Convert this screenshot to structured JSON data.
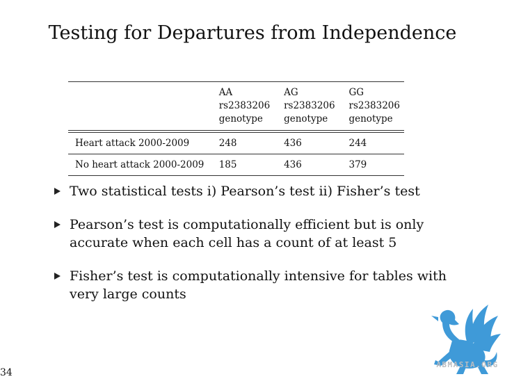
{
  "slide": {
    "title": "Testing for Departures from Independence",
    "page_number": "34"
  },
  "table": {
    "headers": [
      {
        "line1": "",
        "line2": "",
        "line3": ""
      },
      {
        "line1": "AA",
        "line2": "rs2383206",
        "line3": "genotype"
      },
      {
        "line1": "AG",
        "line2": "rs2383206",
        "line3": "genotype"
      },
      {
        "line1": "GG",
        "line2": "rs2383206",
        "line3": "genotype"
      }
    ],
    "rows": [
      [
        "Heart attack 2000-2009",
        "248",
        "436",
        "244"
      ],
      [
        "No heart attack 2000-2009",
        "185",
        "436",
        "379"
      ]
    ]
  },
  "bullets": [
    {
      "line1": "Two statistical tests i) Pearson’s test ii) Fisher’s test",
      "line2": ""
    },
    {
      "line1": "Pearson’s test is computationally efficient but is only",
      "line2": "accurate when each cell has a count of at least 5"
    },
    {
      "line1": "Fisher’s test is computationally intensive for tables with",
      "line2": "very large counts"
    }
  ],
  "logo": {
    "text": "ABMASIA.ORG",
    "icon": "griffin-logo-icon",
    "color": "#3f9ad8"
  }
}
